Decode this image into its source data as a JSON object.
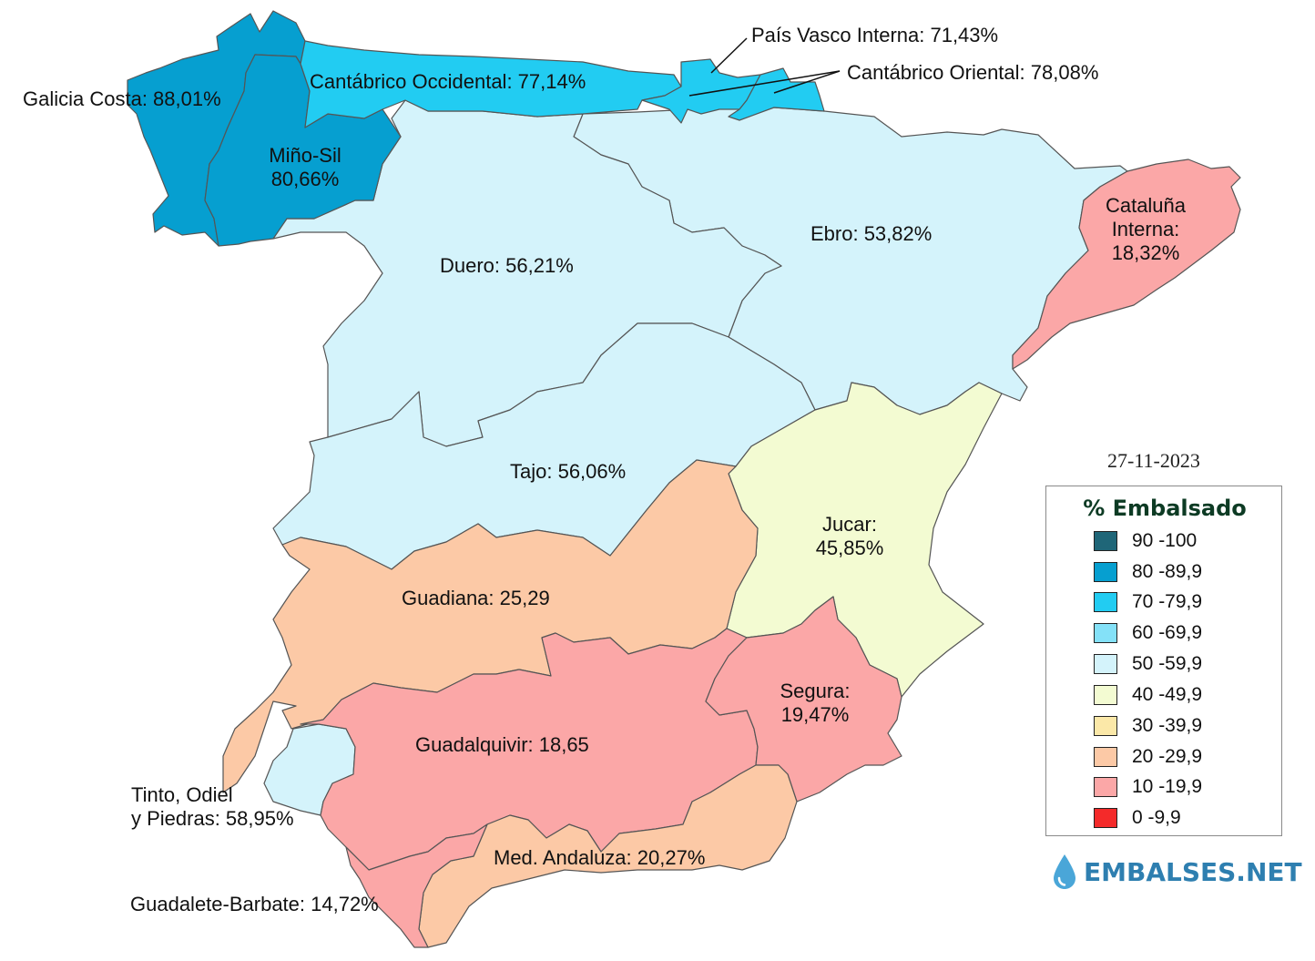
{
  "date": "27-11-2023",
  "legend": {
    "title": "% Embalsado",
    "items": [
      {
        "label": "90 -100",
        "color": "#1f6678"
      },
      {
        "label": "80 -89,9",
        "color": "#069fd0"
      },
      {
        "label": "70 -79,9",
        "color": "#22ccf2"
      },
      {
        "label": "60 -69,9",
        "color": "#84e1f8"
      },
      {
        "label": "50 -59,9",
        "color": "#d4f3fb"
      },
      {
        "label": "40 -49,9",
        "color": "#f3fbd2"
      },
      {
        "label": "30 -39,9",
        "color": "#fbe8a8"
      },
      {
        "label": "20 -29,9",
        "color": "#fcc9a6"
      },
      {
        "label": "10 -19,9",
        "color": "#fba7a7"
      },
      {
        "label": "0 -9,9",
        "color": "#f42a2a"
      }
    ]
  },
  "brand": "EMBALSES.NET",
  "basins": {
    "galicia": {
      "label": "Galicia Costa: 88,01%",
      "value": 88.01,
      "color": "#069fd0"
    },
    "mino": {
      "line1": "Miño-Sil",
      "line2": "80,66%",
      "value": 80.66,
      "color": "#069fd0"
    },
    "cant_occ": {
      "label": "Cantábrico Occidental: 77,14%",
      "value": 77.14,
      "color": "#22ccf2"
    },
    "pais_vasco": {
      "label": "País Vasco Interna: 71,43%",
      "value": 71.43,
      "color": "#22ccf2"
    },
    "cant_ori": {
      "label": "Cantábrico Oriental: 78,08%",
      "value": 78.08,
      "color": "#22ccf2"
    },
    "duero": {
      "label": "Duero: 56,21%",
      "value": 56.21,
      "color": "#d4f3fb"
    },
    "ebro": {
      "label": "Ebro: 53,82%",
      "value": 53.82,
      "color": "#d4f3fb"
    },
    "cataluna": {
      "line1": "Cataluña",
      "line2": "Interna:",
      "line3": "18,32%",
      "value": 18.32,
      "color": "#fba7a7"
    },
    "tajo": {
      "label": "Tajo: 56,06%",
      "value": 56.06,
      "color": "#d4f3fb"
    },
    "jucar": {
      "line1": "Jucar:",
      "line2": "45,85%",
      "value": 45.85,
      "color": "#f3fbd2"
    },
    "guadiana": {
      "label": "Guadiana: 25,29",
      "value": 25.29,
      "color": "#fcc9a6"
    },
    "segura": {
      "line1": "Segura:",
      "line2": "19,47%",
      "value": 19.47,
      "color": "#fba7a7"
    },
    "guadalquivir": {
      "label": "Guadalquivir: 18,65",
      "value": 18.65,
      "color": "#fba7a7"
    },
    "tinto": {
      "line1": "Tinto, Odiel",
      "line2": "y Piedras: 58,95%",
      "value": 58.95,
      "color": "#d4f3fb"
    },
    "med_andaluza": {
      "label": "Med. Andaluza: 20,27%",
      "value": 20.27,
      "color": "#fcc9a6"
    },
    "guadalete": {
      "label": "Guadalete-Barbate: 14,72%",
      "value": 14.72,
      "color": "#fba7a7"
    }
  }
}
